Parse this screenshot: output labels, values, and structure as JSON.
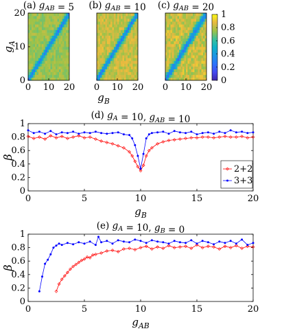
{
  "chart_data": [
    {
      "type": "heatmap",
      "title": "(a) g_AB = 5",
      "title_parts": [
        "(a) ",
        "g",
        "AB",
        " = 5"
      ],
      "xlabel": "g_B",
      "ylabel": "g_A",
      "x_ticks": [
        "0",
        "10",
        "20"
      ],
      "y_ticks": [
        "0",
        "10",
        "20"
      ],
      "xlim": [
        0,
        20
      ],
      "ylim": [
        0,
        20
      ],
      "background_value": 0.75,
      "diagonal_value": 0.3,
      "diagonal_width": 0.8,
      "noise": 0.06
    },
    {
      "type": "heatmap",
      "title": "(b) g_AB = 10",
      "title_parts": [
        "(b) ",
        "g",
        "AB",
        " = 10"
      ],
      "xlabel": "g_B",
      "x_ticks": [
        "0",
        "10",
        "20"
      ],
      "xlim": [
        0,
        20
      ],
      "ylim": [
        0,
        20
      ],
      "background_value": 0.82,
      "diagonal_value": 0.3,
      "diagonal_width": 0.9,
      "noise": 0.08
    },
    {
      "type": "heatmap",
      "title": "(c) g_AB = 20",
      "title_parts": [
        "(c) ",
        "g",
        "AB",
        " = 20"
      ],
      "xlabel": "g_B",
      "x_ticks": [
        "0",
        "10",
        "20"
      ],
      "xlim": [
        0,
        20
      ],
      "ylim": [
        0,
        20
      ],
      "background_value": 0.82,
      "diagonal_value": 0.3,
      "diagonal_width": 1.1,
      "noise": 0.1,
      "colorbar": {
        "ticks": [
          "0",
          "0.2",
          "0.4",
          "0.6",
          "0.8",
          "1"
        ],
        "range": [
          0,
          1
        ],
        "colormap": "parula"
      }
    },
    {
      "type": "line",
      "title": "(d) g_A = 10, g_AB = 10",
      "title_parts": [
        "(d) ",
        "g",
        "A",
        " = 10, ",
        "g",
        "AB",
        " = 10"
      ],
      "xlabel": "g_B",
      "ylabel": "β",
      "xlim": [
        0,
        20
      ],
      "ylim": [
        0,
        1
      ],
      "x_ticks": [
        "0",
        "5",
        "10",
        "15",
        "20"
      ],
      "y_ticks": [
        "0",
        "0.2",
        "0.4",
        "0.6",
        "0.8",
        "1"
      ],
      "legend_position": "right",
      "series": [
        {
          "name": "2+2",
          "color": "#ff0000",
          "marker": "diamond",
          "x": [
            0,
            0.5,
            1,
            1.5,
            2,
            2.5,
            3,
            3.5,
            4,
            4.5,
            5,
            5.5,
            6,
            6.5,
            7,
            7.5,
            8,
            8.5,
            9,
            9.25,
            9.5,
            9.75,
            10,
            10.25,
            10.5,
            10.75,
            11,
            11.5,
            12,
            12.5,
            13,
            13.5,
            14,
            14.5,
            15,
            15.5,
            16,
            16.5,
            17,
            17.5,
            18,
            18.5,
            19,
            19.5,
            20
          ],
          "y": [
            0.81,
            0.78,
            0.8,
            0.77,
            0.82,
            0.79,
            0.81,
            0.78,
            0.8,
            0.82,
            0.79,
            0.8,
            0.77,
            0.74,
            0.72,
            0.7,
            0.67,
            0.64,
            0.58,
            0.52,
            0.44,
            0.36,
            0.3,
            0.38,
            0.52,
            0.6,
            0.64,
            0.7,
            0.73,
            0.75,
            0.76,
            0.77,
            0.78,
            0.79,
            0.79,
            0.8,
            0.8,
            0.79,
            0.8,
            0.81,
            0.8,
            0.8,
            0.81,
            0.79,
            0.8
          ]
        },
        {
          "name": "3+3",
          "color": "#0000ff",
          "marker": "dot",
          "x": [
            0,
            0.5,
            1,
            1.5,
            2,
            2.5,
            3,
            3.5,
            4,
            4.5,
            5,
            5.5,
            6,
            6.5,
            7,
            7.5,
            8,
            8.5,
            9,
            9.25,
            9.5,
            9.75,
            10,
            10.25,
            10.5,
            10.75,
            11,
            11.5,
            12,
            12.5,
            13,
            13.5,
            14,
            14.5,
            15,
            15.5,
            16,
            16.5,
            17,
            17.5,
            18,
            18.5,
            19,
            19.5,
            20
          ],
          "y": [
            0.9,
            0.86,
            0.88,
            0.85,
            0.89,
            0.84,
            0.87,
            0.86,
            0.88,
            0.85,
            0.87,
            0.86,
            0.88,
            0.86,
            0.85,
            0.86,
            0.87,
            0.84,
            0.83,
            0.78,
            0.68,
            0.52,
            0.33,
            0.55,
            0.78,
            0.84,
            0.86,
            0.87,
            0.88,
            0.85,
            0.89,
            0.87,
            0.86,
            0.88,
            0.84,
            0.86,
            0.87,
            0.85,
            0.88,
            0.86,
            0.9,
            0.87,
            0.88,
            0.86,
            0.87
          ]
        }
      ]
    },
    {
      "type": "line",
      "title": "(e) g_A = 10, g_B = 0",
      "title_parts": [
        "(e) ",
        "g",
        "A",
        " = 10, ",
        "g",
        "B",
        " = 0"
      ],
      "xlabel": "g_AB",
      "ylabel": "β",
      "xlim": [
        0,
        20
      ],
      "ylim": [
        0,
        1
      ],
      "x_ticks": [
        "0",
        "5",
        "10",
        "15",
        "20"
      ],
      "y_ticks": [
        "0",
        "0.2",
        "0.4",
        "0.6",
        "0.8",
        "1"
      ],
      "series": [
        {
          "name": "2+2",
          "color": "#ff0000",
          "marker": "diamond",
          "x": [
            2.5,
            2.75,
            3,
            3.25,
            3.5,
            3.75,
            4,
            4.25,
            4.5,
            4.75,
            5,
            5.25,
            5.5,
            5.75,
            6,
            6.5,
            7,
            7.5,
            8,
            8.5,
            9,
            9.5,
            10,
            10.5,
            11,
            11.5,
            12,
            12.5,
            13,
            13.5,
            14,
            14.5,
            15,
            15.5,
            16,
            16.5,
            17,
            17.5,
            18,
            18.5,
            19,
            19.5,
            20
          ],
          "y": [
            0.15,
            0.26,
            0.33,
            0.38,
            0.43,
            0.48,
            0.52,
            0.55,
            0.58,
            0.61,
            0.63,
            0.66,
            0.65,
            0.69,
            0.7,
            0.72,
            0.75,
            0.76,
            0.74,
            0.78,
            0.79,
            0.77,
            0.8,
            0.82,
            0.78,
            0.81,
            0.79,
            0.83,
            0.8,
            0.81,
            0.82,
            0.79,
            0.84,
            0.8,
            0.82,
            0.81,
            0.78,
            0.82,
            0.8,
            0.83,
            0.79,
            0.82,
            0.81
          ]
        },
        {
          "name": "3+3",
          "color": "#0000ff",
          "marker": "dot",
          "x": [
            1,
            1.25,
            1.5,
            1.75,
            2,
            2.25,
            2.5,
            2.75,
            3,
            3.5,
            4,
            4.5,
            5,
            5.5,
            6,
            6.25,
            6.5,
            7,
            7.5,
            8,
            8.5,
            9,
            9.5,
            10,
            10.5,
            11,
            11.5,
            12,
            12.5,
            13,
            13.5,
            14,
            14.5,
            15,
            15.5,
            16,
            16.5,
            17,
            17.5,
            18,
            18.5,
            19,
            19.5,
            20
          ],
          "y": [
            0.15,
            0.37,
            0.56,
            0.62,
            0.7,
            0.8,
            0.83,
            0.86,
            0.84,
            0.87,
            0.85,
            0.88,
            0.86,
            0.89,
            0.84,
            0.96,
            0.88,
            0.9,
            0.86,
            0.91,
            0.89,
            0.88,
            0.92,
            0.9,
            0.87,
            0.91,
            0.89,
            0.88,
            0.86,
            0.9,
            0.88,
            0.87,
            0.91,
            0.86,
            0.9,
            0.88,
            0.85,
            0.89,
            0.87,
            0.9,
            0.86,
            0.92,
            0.84,
            0.87
          ]
        }
      ]
    }
  ]
}
